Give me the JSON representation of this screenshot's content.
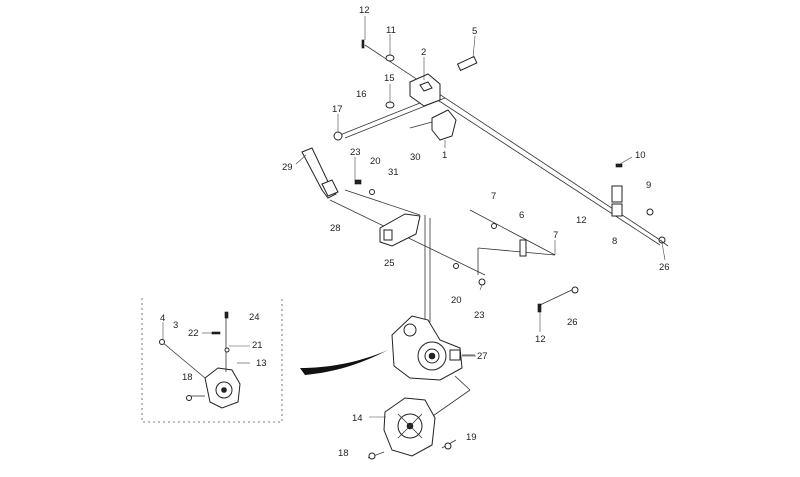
{
  "diagram": {
    "labels": [
      {
        "id": "l12a",
        "text": "12"
      },
      {
        "id": "l11",
        "text": "11"
      },
      {
        "id": "l5",
        "text": "5"
      },
      {
        "id": "l2",
        "text": "2"
      },
      {
        "id": "l15",
        "text": "15"
      },
      {
        "id": "l16",
        "text": "16"
      },
      {
        "id": "l17",
        "text": "17"
      },
      {
        "id": "l23a",
        "text": "23"
      },
      {
        "id": "l20a",
        "text": "20"
      },
      {
        "id": "l30",
        "text": "30"
      },
      {
        "id": "l1",
        "text": "1"
      },
      {
        "id": "l31",
        "text": "31"
      },
      {
        "id": "l29",
        "text": "29"
      },
      {
        "id": "l10",
        "text": "10"
      },
      {
        "id": "l9",
        "text": "9"
      },
      {
        "id": "l7a",
        "text": "7"
      },
      {
        "id": "l6",
        "text": "6"
      },
      {
        "id": "l12b",
        "text": "12"
      },
      {
        "id": "l7b",
        "text": "7"
      },
      {
        "id": "l8",
        "text": "8"
      },
      {
        "id": "l28",
        "text": "28"
      },
      {
        "id": "l26a",
        "text": "26"
      },
      {
        "id": "l25",
        "text": "25"
      },
      {
        "id": "l20b",
        "text": "20"
      },
      {
        "id": "l23b",
        "text": "23"
      },
      {
        "id": "l26b",
        "text": "26"
      },
      {
        "id": "l12c",
        "text": "12"
      },
      {
        "id": "l27",
        "text": "27"
      },
      {
        "id": "l4",
        "text": "4"
      },
      {
        "id": "l3",
        "text": "3"
      },
      {
        "id": "l24",
        "text": "24"
      },
      {
        "id": "l22",
        "text": "22"
      },
      {
        "id": "l21",
        "text": "21"
      },
      {
        "id": "l13",
        "text": "13"
      },
      {
        "id": "l18a",
        "text": "18"
      },
      {
        "id": "l14",
        "text": "14"
      },
      {
        "id": "l19",
        "text": "19"
      },
      {
        "id": "l18b",
        "text": "18"
      }
    ]
  }
}
